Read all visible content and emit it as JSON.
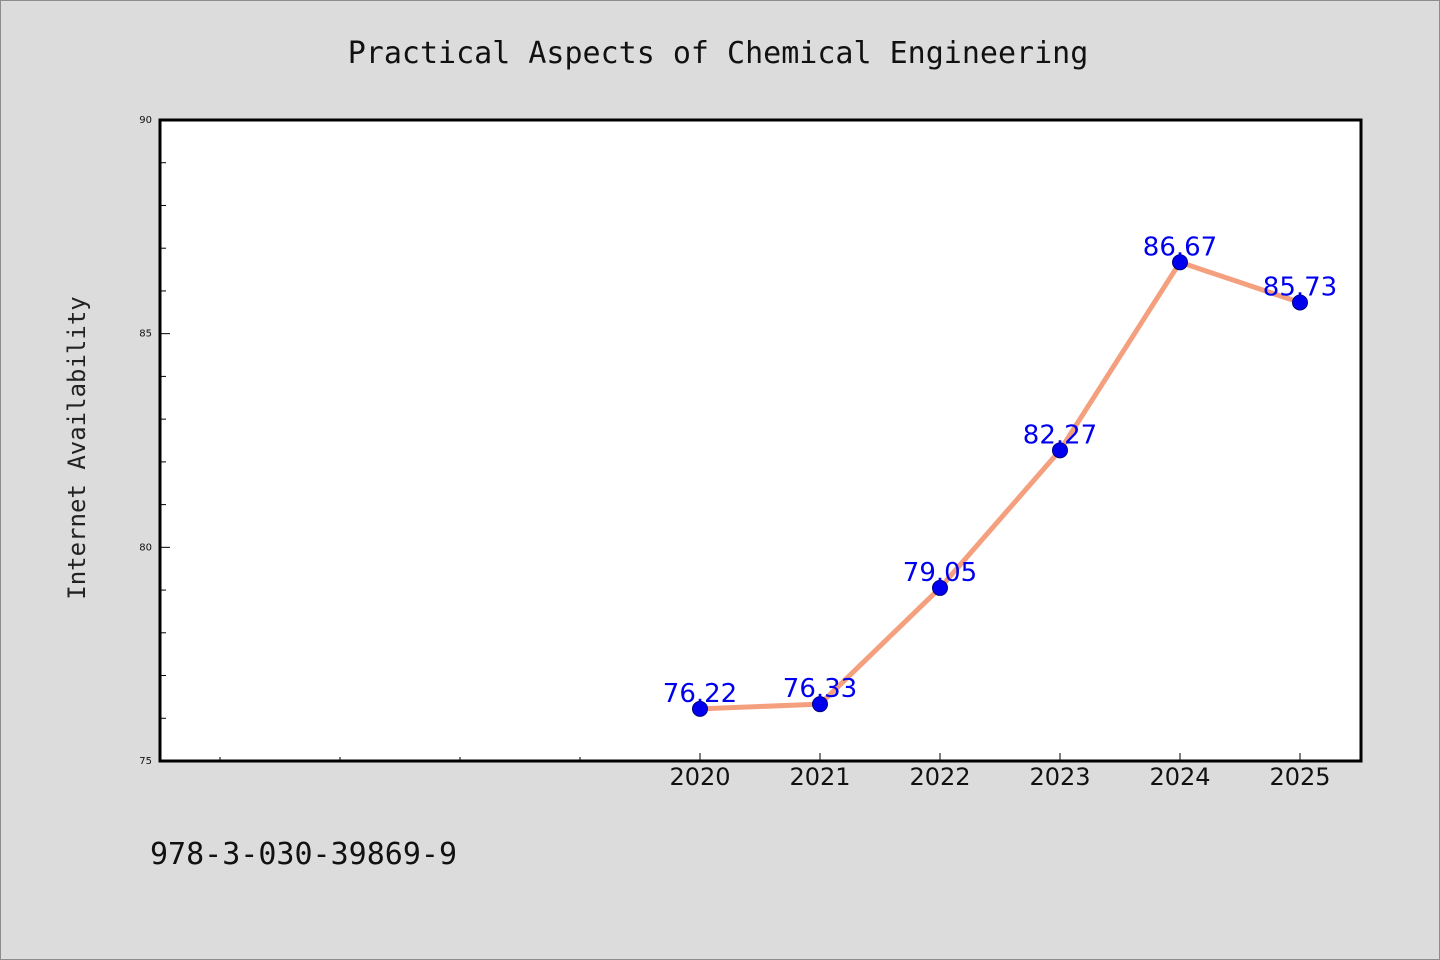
{
  "chart_data": {
    "type": "line",
    "title": "Practical Aspects of Chemical Engineering",
    "xlabel": "",
    "ylabel": "Internet Availability",
    "x": [
      "2020",
      "2021",
      "2022",
      "2023",
      "2024",
      "2025"
    ],
    "values": [
      76.22,
      76.33,
      79.05,
      82.27,
      86.67,
      85.73
    ],
    "data_labels": [
      "76.22",
      "76.33",
      "79.05",
      "82.27",
      "86.67",
      "85.73"
    ],
    "ylim": [
      75,
      90
    ],
    "yticks": [
      "75",
      "80",
      "85",
      "90"
    ],
    "grid": false,
    "legend": "none",
    "line_color": "#f4a07e",
    "marker_color": "#0000ee",
    "label_color": "#0000ee"
  },
  "footnote": "978-3-030-39869-9",
  "colors": {
    "page_background": "#dcdcdc",
    "plot_background": "#ffffff",
    "axes": "#000000"
  }
}
